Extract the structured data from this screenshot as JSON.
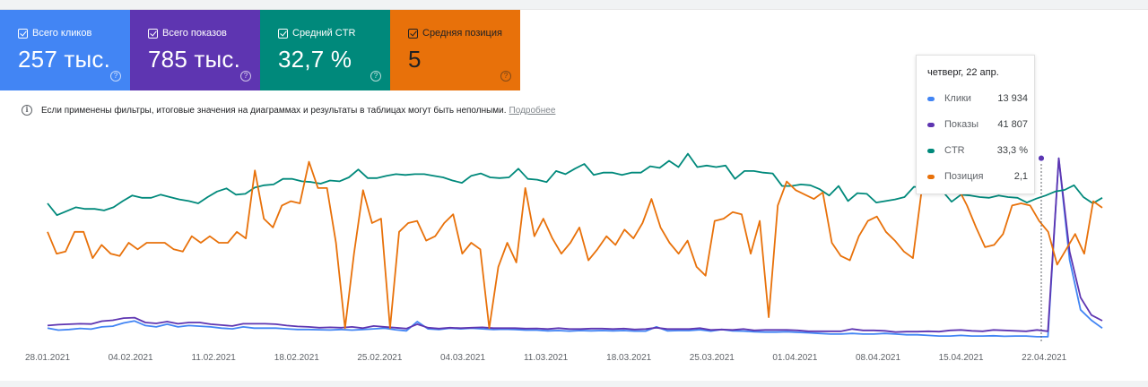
{
  "metrics": [
    {
      "label": "Всего кликов",
      "value": "257 тыс.",
      "color": "#4285f4"
    },
    {
      "label": "Всего показов",
      "value": "785 тыс.",
      "color": "#5e35b1"
    },
    {
      "label": "Средний CTR",
      "value": "32,7 %",
      "color": "#00897b"
    },
    {
      "label": "Средняя позиция",
      "value": "5",
      "color": "#e8710a"
    }
  ],
  "help_glyph": "?",
  "notice": {
    "text": "Если применены фильтры, итоговые значения на диаграммах и результаты в таблицах могут быть неполными.",
    "link": "Подробнее",
    "icon_glyph": "i"
  },
  "tooltip": {
    "date": "четверг, 22 апр.",
    "rows": [
      {
        "name": "Клики",
        "value": "13 934",
        "color": "#4285f4"
      },
      {
        "name": "Показы",
        "value": "41 807",
        "color": "#5e35b1"
      },
      {
        "name": "CTR",
        "value": "33,3 %",
        "color": "#00897b"
      },
      {
        "name": "Позиция",
        "value": "2,1",
        "color": "#e8710a"
      }
    ]
  },
  "chart_data": {
    "type": "line",
    "x_ticks": [
      "28.01.2021",
      "04.02.2021",
      "11.02.2021",
      "18.02.2021",
      "25.02.2021",
      "04.03.2021",
      "11.03.2021",
      "18.03.2021",
      "25.03.2021",
      "01.04.2021",
      "08.04.2021",
      "15.04.2021",
      "22.04.2021"
    ],
    "start_date": "28.01.2021",
    "highlight_date": "22.04.2021",
    "grid": false,
    "series": [
      {
        "name": "Клики",
        "color": "#4285f4",
        "values": [
          1,
          0.85,
          0.9,
          0.98,
          0.93,
          1.1,
          1.15,
          1.4,
          1.55,
          1.2,
          1.1,
          1.3,
          1.1,
          1.2,
          1.15,
          1.1,
          1,
          0.95,
          1.1,
          1.0,
          1.0,
          1.0,
          0.95,
          0.9,
          0.9,
          0.88,
          0.86,
          0.9,
          0.85,
          0.9,
          0.95,
          1.0,
          0.88,
          0.8,
          1.5,
          0.95,
          0.9,
          1.0,
          0.95,
          1.0,
          0.95,
          0.9,
          0.92,
          0.9,
          0.85,
          0.85,
          0.8,
          0.82,
          0.78,
          0.82,
          0.8,
          0.82,
          0.8,
          0.82,
          0.78,
          0.78,
          1.1,
          0.8,
          0.82,
          0.82,
          0.88,
          0.78,
          0.9,
          0.8,
          0.78,
          0.72,
          0.7,
          0.7,
          0.72,
          0.68,
          0.65,
          0.6,
          0.55,
          0.55,
          0.6,
          0.55,
          0.55,
          0.6,
          0.55,
          0.5,
          0.5,
          0.45,
          0.4,
          0.4,
          0.45,
          0.4,
          0.4,
          0.42,
          0.38,
          0.4,
          0.4,
          0.35,
          0.35,
          13.934,
          6.2,
          2.4,
          1.6,
          1.0
        ]
      },
      {
        "name": "Показы",
        "color": "#5e35b1",
        "values": [
          3.6,
          3.8,
          3.9,
          4,
          3.95,
          4.6,
          4.8,
          5.3,
          5.4,
          4.3,
          4.1,
          4.5,
          4.0,
          4.3,
          4.3,
          3.9,
          3.7,
          3.5,
          4.0,
          4.0,
          4.0,
          3.9,
          3.6,
          3.4,
          3.3,
          3.1,
          3.2,
          3.1,
          3.3,
          3.0,
          3.5,
          3.3,
          3.1,
          2.9,
          3.9,
          3.1,
          2.9,
          3.1,
          3.0,
          3.1,
          3.2,
          3.0,
          3.0,
          3.0,
          2.9,
          2.95,
          2.8,
          3.0,
          2.8,
          2.8,
          2.9,
          2.9,
          2.8,
          2.9,
          2.7,
          2.8,
          3.1,
          2.8,
          2.8,
          2.8,
          3.0,
          2.6,
          2.7,
          2.6,
          2.8,
          2.5,
          2.6,
          2.6,
          2.6,
          2.5,
          2.3,
          2.3,
          2.3,
          2.3,
          2.8,
          2.5,
          2.5,
          2.4,
          2.1,
          2.2,
          2.2,
          2.3,
          2.2,
          2.5,
          2.6,
          2.4,
          2.3,
          2.6,
          2.5,
          2.4,
          2.3,
          2.6,
          2.3,
          41.807,
          20.5,
          10.0,
          6.0,
          4.7
        ]
      },
      {
        "name": "CTR",
        "color": "#00897b",
        "values": [
          27.5,
          26.0,
          26.5,
          27.0,
          26.8,
          26.8,
          26.6,
          27.0,
          27.8,
          28.5,
          28.2,
          28.2,
          28.6,
          28.3,
          28.0,
          27.8,
          27.5,
          28.3,
          29.0,
          29.4,
          28.6,
          28.7,
          29.5,
          29.8,
          29.9,
          30.6,
          30.6,
          30.3,
          30.2,
          30.0,
          30.4,
          30.3,
          30.8,
          31.8,
          30.7,
          30.7,
          31.0,
          31.2,
          31.1,
          31.2,
          31.2,
          31.0,
          30.8,
          30.4,
          30.1,
          31.0,
          31.3,
          30.8,
          30.7,
          30.8,
          31.9,
          30.6,
          30.5,
          30.2,
          31.6,
          31.2,
          31.9,
          32.5,
          31.1,
          31.4,
          31.4,
          31.1,
          31.4,
          31.4,
          32.2,
          32.0,
          32.9,
          32.1,
          33.8,
          32.1,
          32.3,
          32.1,
          32.3,
          30.6,
          31.6,
          31.6,
          31.4,
          31.3,
          29.7,
          29.7,
          29.9,
          29.8,
          29.3,
          28.5,
          29.7,
          27.8,
          28.8,
          28.7,
          27.6,
          27.8,
          28.0,
          28.3,
          29.6,
          29.5,
          29.4,
          29.1,
          27.7,
          28.6,
          28.5,
          28.3,
          28.2,
          28.5,
          28.3,
          28.2,
          27.6,
          28.1,
          28.5,
          29.0,
          29.2,
          29.8,
          28.3,
          27.5,
          28.2
        ]
      },
      {
        "name": "Позиция",
        "color": "#e8710a",
        "values": [
          5.0,
          6.0,
          5.9,
          5.0,
          5.0,
          6.2,
          5.6,
          6.0,
          6.1,
          5.5,
          5.8,
          5.5,
          5.5,
          5.5,
          5.8,
          5.9,
          5.2,
          5.5,
          5.2,
          5.5,
          5.5,
          5.0,
          5.3,
          2.2,
          4.4,
          4.8,
          3.8,
          3.6,
          3.7,
          1.8,
          3.0,
          3.0,
          5.5,
          9.4,
          6.0,
          3.1,
          4.6,
          4.4,
          9.4,
          5.0,
          4.6,
          4.5,
          5.4,
          5.2,
          4.6,
          4.2,
          6.0,
          5.5,
          5.8,
          9.4,
          6.6,
          5.5,
          6.4,
          3.0,
          5.2,
          4.4,
          5.3,
          6.0,
          5.5,
          4.8,
          6.3,
          5.8,
          5.2,
          5.6,
          4.9,
          5.3,
          4.6,
          3.5,
          4.8,
          5.5,
          6.0,
          5.4,
          6.6,
          7.0,
          4.5,
          4.4,
          4.1,
          4.2,
          6.0,
          4.5,
          8.9,
          3.8,
          2.7,
          3.1,
          3.3,
          3.5,
          3.2,
          5.5,
          6.1,
          6.3,
          5.2,
          4.5,
          4.3,
          5.0,
          5.4,
          5.9,
          6.2,
          3.0,
          2.6,
          3.2,
          2.2,
          3.0,
          3.8,
          4.8,
          5.7,
          5.6,
          5.1,
          3.8,
          3.7,
          3.8,
          4.5,
          5.0,
          6.5,
          5.8,
          5.1,
          6.0,
          3.6,
          3.9
        ]
      }
    ]
  }
}
